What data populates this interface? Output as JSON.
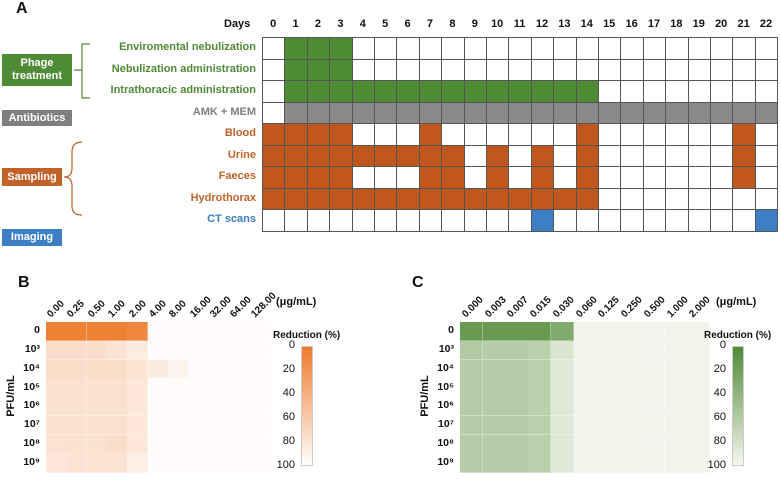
{
  "panel_a": {
    "label": "A",
    "days_label": "Days",
    "days": [
      "0",
      "1",
      "2",
      "3",
      "4",
      "5",
      "6",
      "7",
      "8",
      "9",
      "10",
      "11",
      "12",
      "13",
      "14",
      "15",
      "16",
      "17",
      "18",
      "19",
      "20",
      "21",
      "22"
    ],
    "categories": [
      {
        "label": "Phage\ntreatment",
        "color": "#4f8a35"
      },
      {
        "label": "Antibiotics",
        "color": "#7f7f7f"
      },
      {
        "label": "Sampling",
        "color": "#c0622a"
      },
      {
        "label": "Imaging",
        "color": "#3d7fc4"
      }
    ],
    "rows": [
      {
        "label": "Enviromental nebulization",
        "label_color": "#4f8a35",
        "fill": "#4f8a35",
        "active_days": [
          1,
          2,
          3
        ]
      },
      {
        "label": "Nebulization administration",
        "label_color": "#4f8a35",
        "fill": "#4f8a35",
        "active_days": [
          1,
          2,
          3
        ]
      },
      {
        "label": "Intrathoracic administration",
        "label_color": "#4f8a35",
        "fill": "#4f8a35",
        "active_days": [
          1,
          2,
          3,
          4,
          5,
          6,
          7,
          8,
          9,
          10,
          11,
          12,
          13,
          14
        ]
      },
      {
        "label": "AMK + MEM",
        "label_color": "#7f7f7f",
        "fill": "#8a8a8a",
        "active_days": [
          1,
          2,
          3,
          4,
          5,
          6,
          7,
          8,
          9,
          10,
          11,
          12,
          13,
          14,
          15,
          16,
          17,
          18,
          19,
          20,
          21,
          22
        ]
      },
      {
        "label": "Blood",
        "label_color": "#c0622a",
        "fill": "#c0581d",
        "active_days": [
          0,
          1,
          2,
          3,
          7,
          14,
          21
        ]
      },
      {
        "label": "Urine",
        "label_color": "#c0622a",
        "fill": "#c0581d",
        "active_days": [
          0,
          1,
          2,
          3,
          4,
          5,
          6,
          7,
          8,
          10,
          12,
          14,
          21
        ]
      },
      {
        "label": "Faeces",
        "label_color": "#c0622a",
        "fill": "#c0581d",
        "active_days": [
          0,
          1,
          2,
          3,
          7,
          8,
          10,
          12,
          14,
          21
        ]
      },
      {
        "label": "Hydrothorax",
        "label_color": "#c0622a",
        "fill": "#c0581d",
        "active_days": [
          0,
          1,
          2,
          3,
          4,
          5,
          6,
          7,
          8,
          9,
          10,
          11,
          12,
          13,
          14
        ]
      },
      {
        "label": "CT scans",
        "label_color": "#3d7fc4",
        "fill": "#3d7fc4",
        "active_days": [
          12,
          22
        ]
      }
    ]
  },
  "chart_data": [
    {
      "type": "heatmap",
      "panel_label": "B",
      "x_unit": "(μg/mL)",
      "ylabel": "PFU/mL",
      "x_categories": [
        "0.00",
        "0.25",
        "0.50",
        "1.00",
        "2.00",
        "4.00",
        "8.00",
        "16.00",
        "32.00",
        "64.00",
        "128.00"
      ],
      "y_categories": [
        "0",
        "10³",
        "10⁴",
        "10⁵",
        "10⁶",
        "10⁷",
        "10⁸",
        "10⁹"
      ],
      "colorbar": {
        "title": "Reduction (%)",
        "ticks": [
          "0",
          "20",
          "40",
          "60",
          "80",
          "100"
        ],
        "color_high": "#ee7a2a",
        "color_low": "#ffffff"
      },
      "values": [
        [
          5,
          5,
          5,
          5,
          10,
          98,
          98,
          98,
          98,
          98,
          98
        ],
        [
          75,
          75,
          75,
          80,
          85,
          98,
          98,
          98,
          98,
          98,
          98
        ],
        [
          75,
          75,
          75,
          75,
          80,
          85,
          92,
          98,
          98,
          98,
          98
        ],
        [
          78,
          78,
          78,
          78,
          82,
          98,
          98,
          98,
          98,
          98,
          98
        ],
        [
          78,
          78,
          78,
          78,
          82,
          98,
          98,
          98,
          98,
          98,
          98
        ],
        [
          78,
          78,
          78,
          78,
          82,
          98,
          98,
          98,
          98,
          98,
          98
        ],
        [
          80,
          78,
          78,
          75,
          82,
          98,
          98,
          98,
          98,
          98,
          98
        ],
        [
          82,
          80,
          80,
          80,
          88,
          98,
          98,
          98,
          98,
          98,
          98
        ]
      ]
    },
    {
      "type": "heatmap",
      "panel_label": "C",
      "x_unit": "(μg/mL)",
      "ylabel": "PFU/mL",
      "x_categories": [
        "0.000",
        "0.003",
        "0.007",
        "0.015",
        "0.030",
        "0.060",
        "0.125",
        "0.250",
        "0.500",
        "1.000",
        "2.000"
      ],
      "y_categories": [
        "0",
        "10³",
        "10⁴",
        "10⁵",
        "10⁶",
        "10⁷",
        "10⁸",
        "10⁹"
      ],
      "colorbar": {
        "title": "Reduction (%)",
        "ticks": [
          "0",
          "20",
          "40",
          "60",
          "80",
          "100"
        ],
        "color_high": "#4f8a35",
        "color_low": "#f4f6ee"
      },
      "values": [
        [
          15,
          15,
          15,
          15,
          30,
          98,
          98,
          98,
          98,
          98,
          98
        ],
        [
          60,
          62,
          62,
          65,
          85,
          98,
          98,
          98,
          98,
          98,
          98
        ],
        [
          62,
          62,
          62,
          65,
          88,
          98,
          98,
          98,
          98,
          98,
          98
        ],
        [
          62,
          62,
          62,
          65,
          88,
          98,
          98,
          98,
          98,
          98,
          98
        ],
        [
          62,
          62,
          62,
          65,
          88,
          98,
          98,
          98,
          98,
          98,
          98
        ],
        [
          62,
          62,
          62,
          65,
          88,
          98,
          98,
          98,
          98,
          98,
          98
        ],
        [
          62,
          62,
          62,
          65,
          88,
          98,
          98,
          98,
          98,
          98,
          98
        ],
        [
          62,
          62,
          62,
          65,
          88,
          98,
          98,
          98,
          98,
          98,
          98
        ]
      ]
    }
  ]
}
